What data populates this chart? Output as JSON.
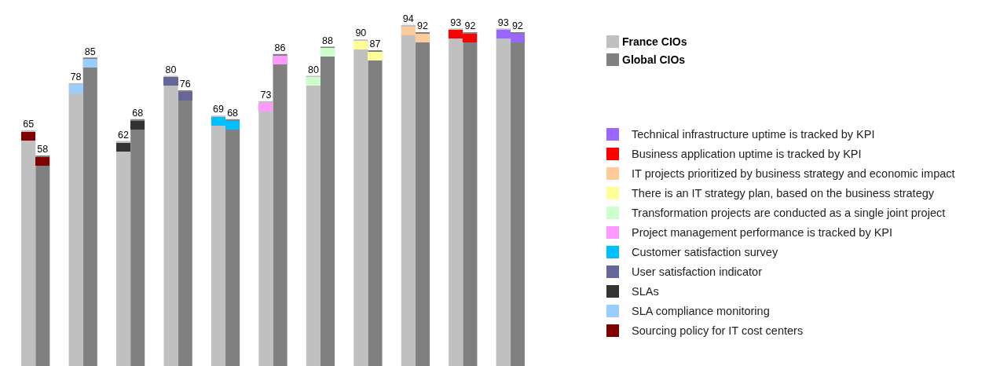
{
  "chart_data": {
    "type": "bar",
    "categories": [
      null,
      null,
      null,
      null,
      null,
      null,
      null,
      null,
      null,
      null,
      null
    ],
    "colors": [
      "#800000",
      "#99ccff",
      "#333333",
      "#666699",
      "#00bfff",
      "#ff99ff",
      "#ccffcc",
      "#ffff99",
      "#ffcc99",
      "#ff0000",
      "#9966ff"
    ],
    "series": [
      {
        "name": "France CIOs",
        "color": "#c0c0c0",
        "values": [
          65,
          78,
          62,
          80,
          69,
          73,
          80,
          90,
          94,
          93,
          93
        ]
      },
      {
        "name": "Global CIOs",
        "color": "#808080",
        "values": [
          58,
          85,
          68,
          76,
          68,
          86,
          88,
          87,
          92,
          92,
          92
        ]
      }
    ],
    "annotations": [
      "Sourcing policy for IT cost centers",
      "SLA compliance monitoring",
      "SLAs",
      "User satisfaction indicator",
      "Customer satisfaction survey",
      "Project management performance is tracked by KPI",
      "Transformation projects are conducted as a single joint project",
      "There is an IT strategy plan, based on the business strategy",
      "IT projects prioritized by business strategy and economic impact",
      "Business application uptime is tracked by KPI",
      "Technical infrastructure uptime is tracked by KPI"
    ],
    "tick_labels": false,
    "data_labels": true,
    "legend": "right"
  }
}
